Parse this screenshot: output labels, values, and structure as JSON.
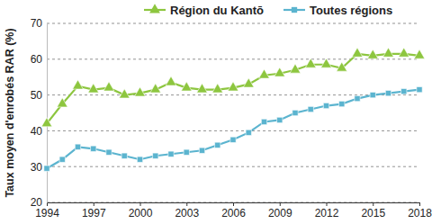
{
  "chart_data": {
    "type": "line",
    "y_label": "Taux moyen d'enrobés RAR (%)",
    "x": [
      1994,
      1995,
      1996,
      1997,
      1998,
      1999,
      2000,
      2001,
      2002,
      2003,
      2004,
      2005,
      2006,
      2007,
      2008,
      2009,
      2010,
      2011,
      2012,
      2013,
      2014,
      2015,
      2016,
      2017,
      2018
    ],
    "series": [
      {
        "name": "Région du Kantō",
        "color": "#8dc63f",
        "marker": "triangle",
        "values": [
          42,
          47.5,
          52.5,
          51.5,
          52,
          50,
          50.5,
          51.5,
          53.5,
          52,
          51.5,
          51.5,
          52,
          53,
          55.5,
          56,
          57,
          58.5,
          58.5,
          57.5,
          61.5,
          61,
          61.5,
          61.5,
          61
        ]
      },
      {
        "name": "Toutes régions",
        "color": "#5bb4cf",
        "marker": "square",
        "values": [
          29.5,
          32,
          35.5,
          35,
          34,
          33,
          32,
          33,
          33.5,
          34,
          34.5,
          36,
          37.5,
          39.5,
          42.5,
          43,
          45,
          46,
          47,
          47.5,
          49,
          50,
          50.5,
          51,
          51.5
        ]
      }
    ],
    "xlim": [
      1994,
      2018
    ],
    "xticks": [
      1994,
      1997,
      2000,
      2003,
      2006,
      2009,
      2012,
      2015,
      2018
    ],
    "ylim": [
      20,
      70
    ],
    "yticks": [
      20,
      30,
      40,
      50,
      60,
      70
    ],
    "grid": true,
    "legend": "top"
  }
}
